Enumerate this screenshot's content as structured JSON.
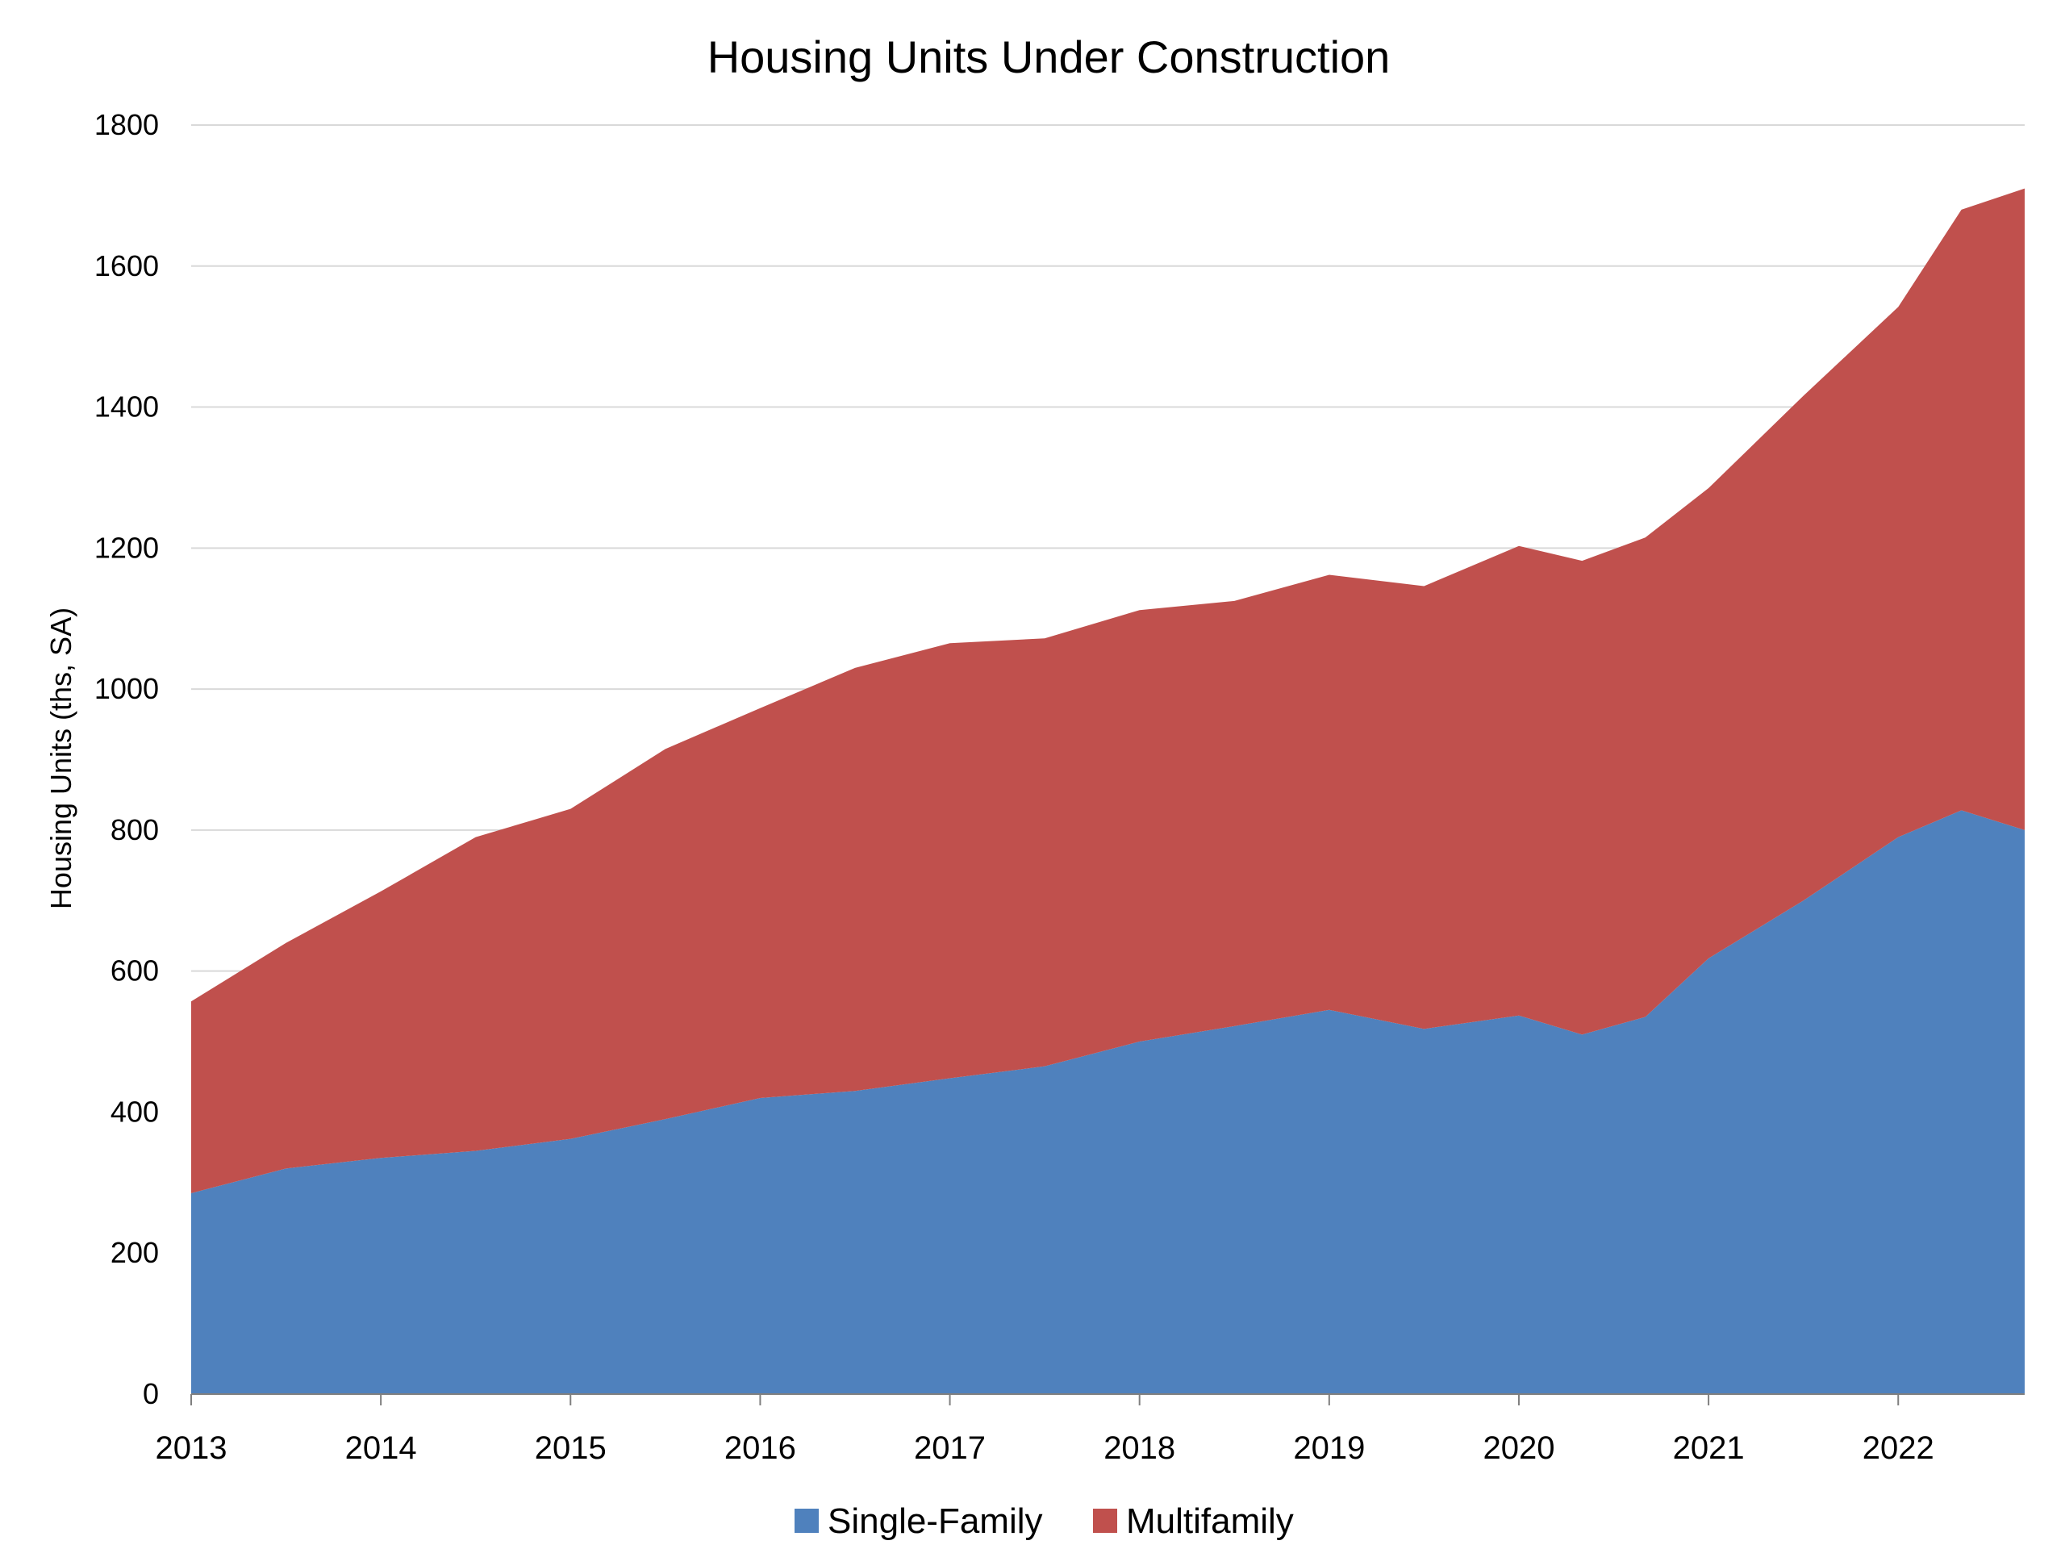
{
  "chart_data": {
    "type": "area",
    "stacked": true,
    "title": "Housing Units Under Construction",
    "ylabel": "Housing Units (ths, SA)",
    "xlabel": "",
    "ylim": [
      0,
      1800
    ],
    "yticks": [
      "0",
      "200",
      "400",
      "600",
      "800",
      "1000",
      "1200",
      "1400",
      "1600",
      "1800"
    ],
    "xlim": [
      "2013-01",
      "2022-09"
    ],
    "xticks": [
      "2013",
      "2014",
      "2015",
      "2016",
      "2017",
      "2018",
      "2019",
      "2020",
      "2021",
      "2022"
    ],
    "grid": "horizontal",
    "legend": "bottom-center",
    "x": [
      "2013-01",
      "2013-07",
      "2014-01",
      "2014-07",
      "2015-01",
      "2015-07",
      "2016-01",
      "2016-07",
      "2017-01",
      "2017-07",
      "2018-01",
      "2018-07",
      "2019-01",
      "2019-07",
      "2020-01",
      "2020-05",
      "2020-09",
      "2021-01",
      "2021-07",
      "2022-01",
      "2022-05",
      "2022-09"
    ],
    "series": [
      {
        "name": "Single-Family",
        "color": "#4f81bd",
        "values": [
          285,
          320,
          335,
          345,
          362,
          390,
          420,
          430,
          448,
          465,
          500,
          522,
          545,
          518,
          537,
          510,
          535,
          618,
          700,
          790,
          828,
          800
        ]
      },
      {
        "name": "Multifamily",
        "color": "#c0504d",
        "values": [
          272,
          320,
          378,
          445,
          468,
          525,
          553,
          600,
          617,
          607,
          612,
          603,
          617,
          628,
          666,
          672,
          680,
          667,
          716,
          752,
          852,
          910
        ]
      }
    ]
  },
  "legend": {
    "items": [
      {
        "label": "Single-Family",
        "color": "#4f81bd"
      },
      {
        "label": "Multifamily",
        "color": "#c0504d"
      }
    ]
  }
}
